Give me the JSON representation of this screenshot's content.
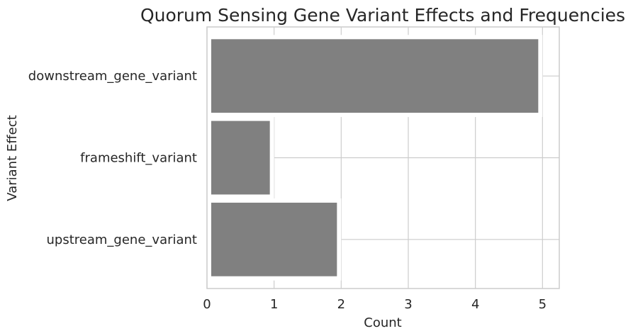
{
  "chart_data": {
    "type": "bar",
    "orientation": "horizontal",
    "title": "Quorum Sensing Gene Variant Effects and Frequencies",
    "xlabel": "Count",
    "ylabel": "Variant Effect",
    "categories": [
      "downstream_gene_variant",
      "frameshift_variant",
      "upstream_gene_variant"
    ],
    "values": [
      5,
      1,
      2
    ],
    "xlim": [
      0,
      5.25
    ],
    "xticks": [
      "0",
      "1",
      "2",
      "3",
      "4",
      "5"
    ],
    "grid": true,
    "bar_color": "#808080",
    "grid_color": "#cccccc",
    "spine_color": "#cccccc"
  }
}
